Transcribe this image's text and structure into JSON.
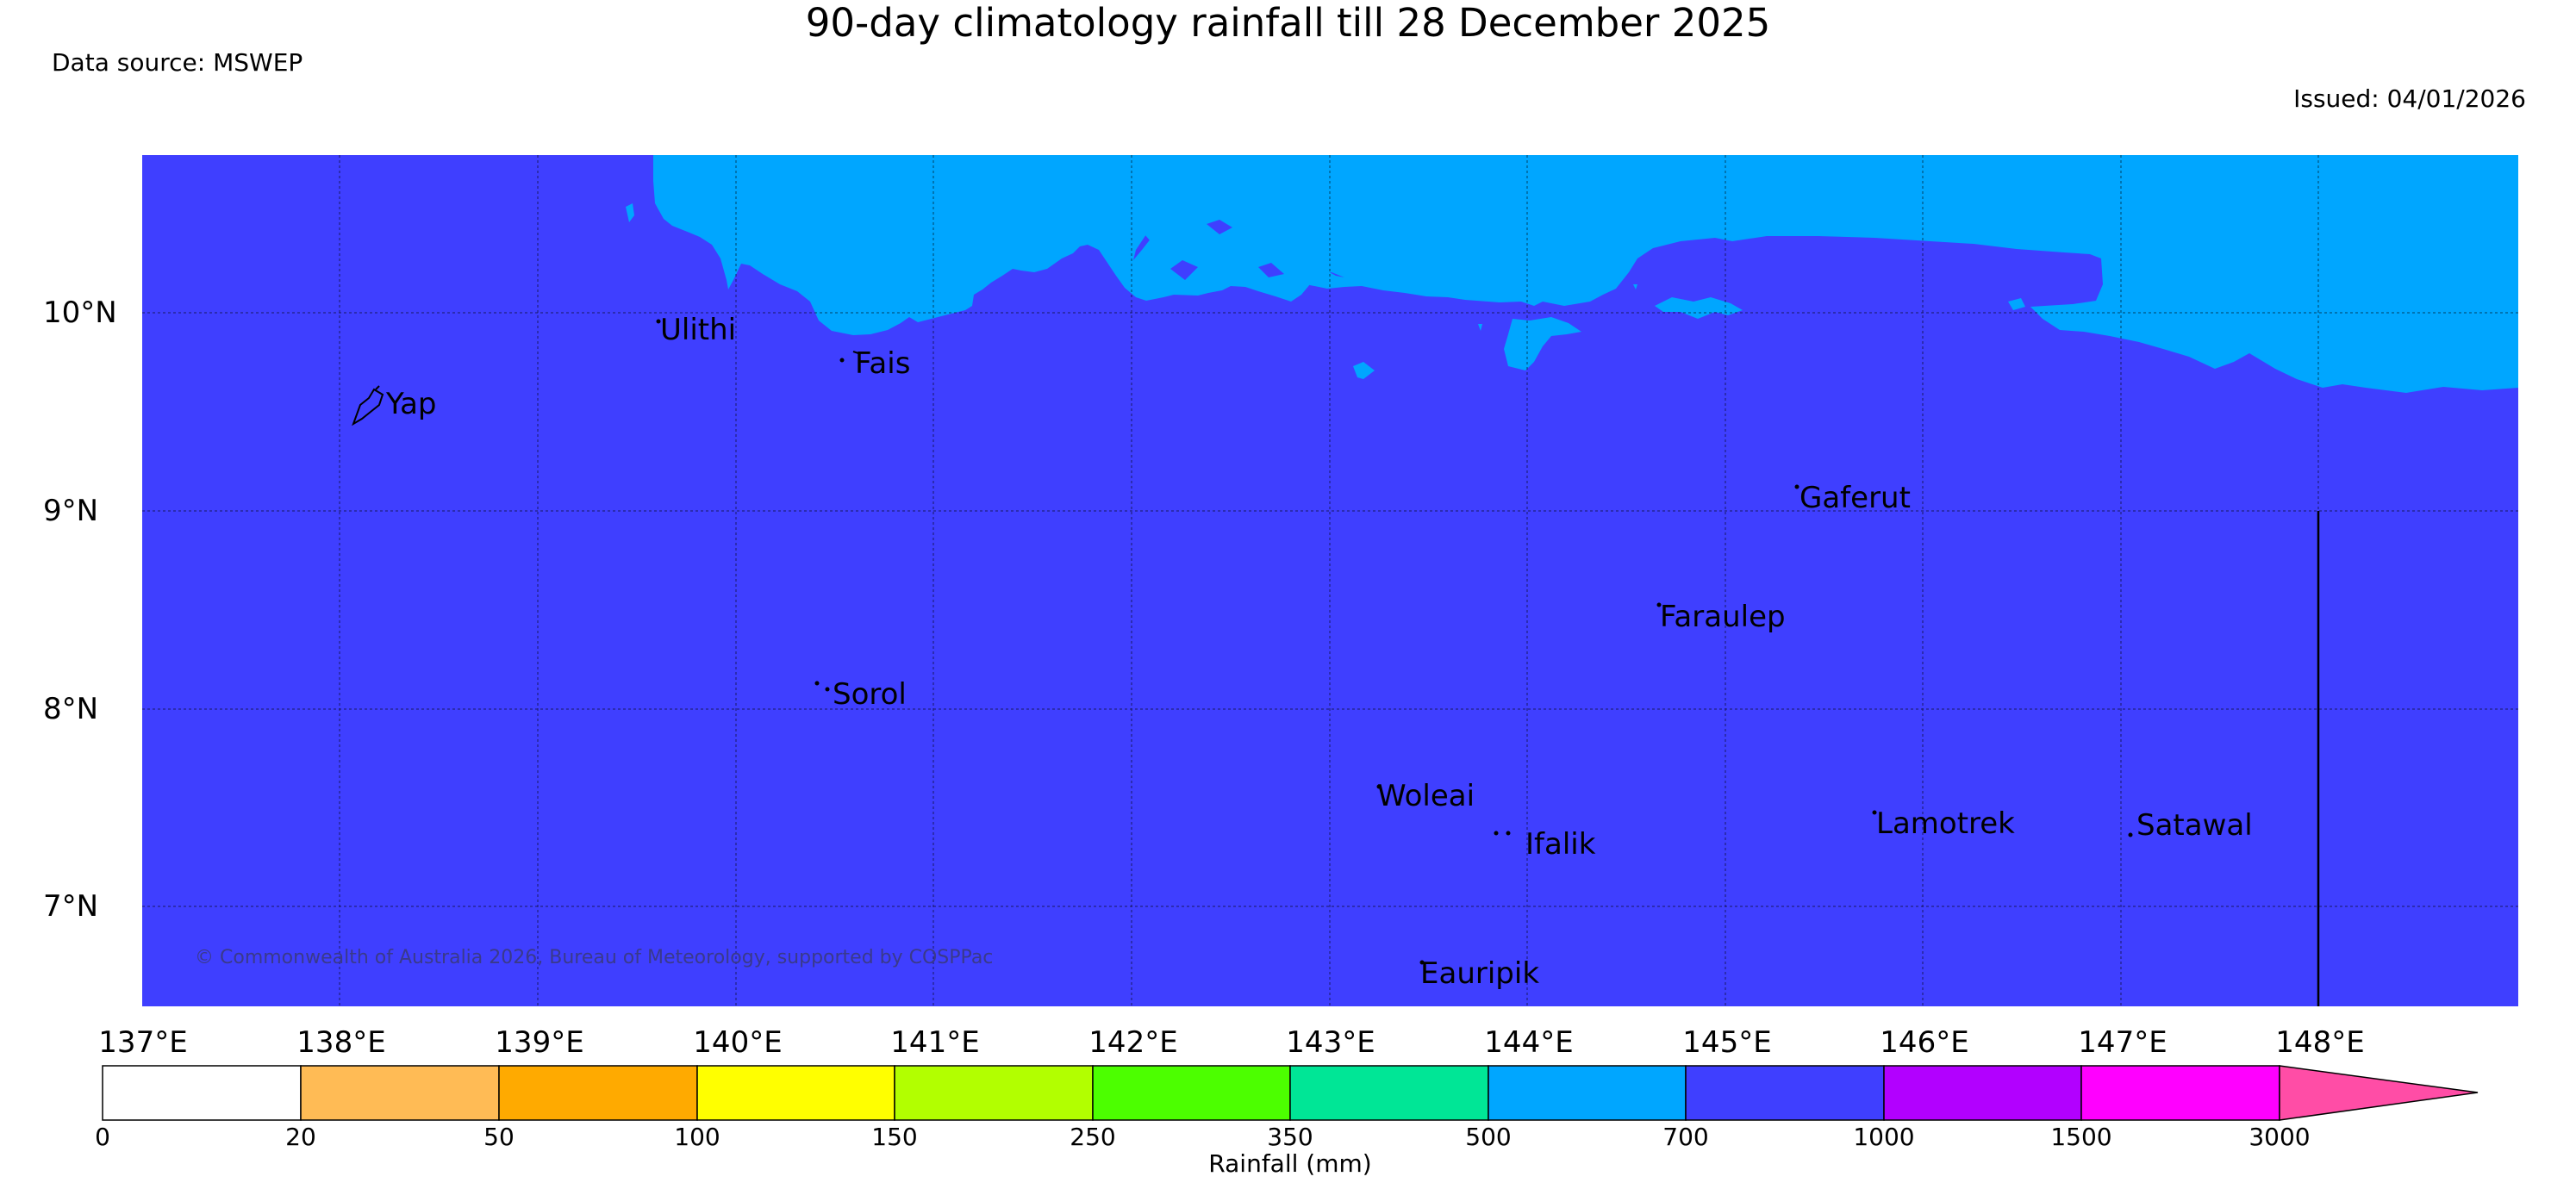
{
  "header": {
    "title": "90-day climatology rainfall till 28 December 2025",
    "source": "Data source: MSWEP",
    "issued": "Issued: 04/01/2026"
  },
  "map": {
    "copyright": "© Commonwealth of Australia 2026, Bureau of Meteorology, supported by COSPPac",
    "lat_ticks": [
      "10°N",
      "9°N",
      "8°N",
      "7°N"
    ],
    "lon_ticks": [
      "137°E",
      "138°E",
      "139°E",
      "140°E",
      "141°E",
      "142°E",
      "143°E",
      "144°E",
      "145°E",
      "146°E",
      "147°E",
      "148°E"
    ],
    "places": [
      "Ulithi",
      "Fais",
      "Yap",
      "Gaferut",
      "Faraulep",
      "Sorol",
      "Woleai",
      "Ifalik",
      "Lamotrek",
      "Satawal",
      "Eauripik"
    ],
    "colors": {
      "700-1000": "#3f3fff",
      "500-700": "#00a6ff"
    }
  },
  "colorbar": {
    "title": "Rainfall (mm)",
    "labels": [
      "0",
      "20",
      "50",
      "100",
      "150",
      "250",
      "350",
      "500",
      "700",
      "1000",
      "1500",
      "3000"
    ],
    "colors": [
      "#ffffff",
      "#ffbb55",
      "#ffaa00",
      "#ffff00",
      "#b2ff00",
      "#4cff00",
      "#00e696",
      "#00a6ff",
      "#3f3fff",
      "#b200ff",
      "#ff00ff",
      "#ff4da6"
    ]
  }
}
